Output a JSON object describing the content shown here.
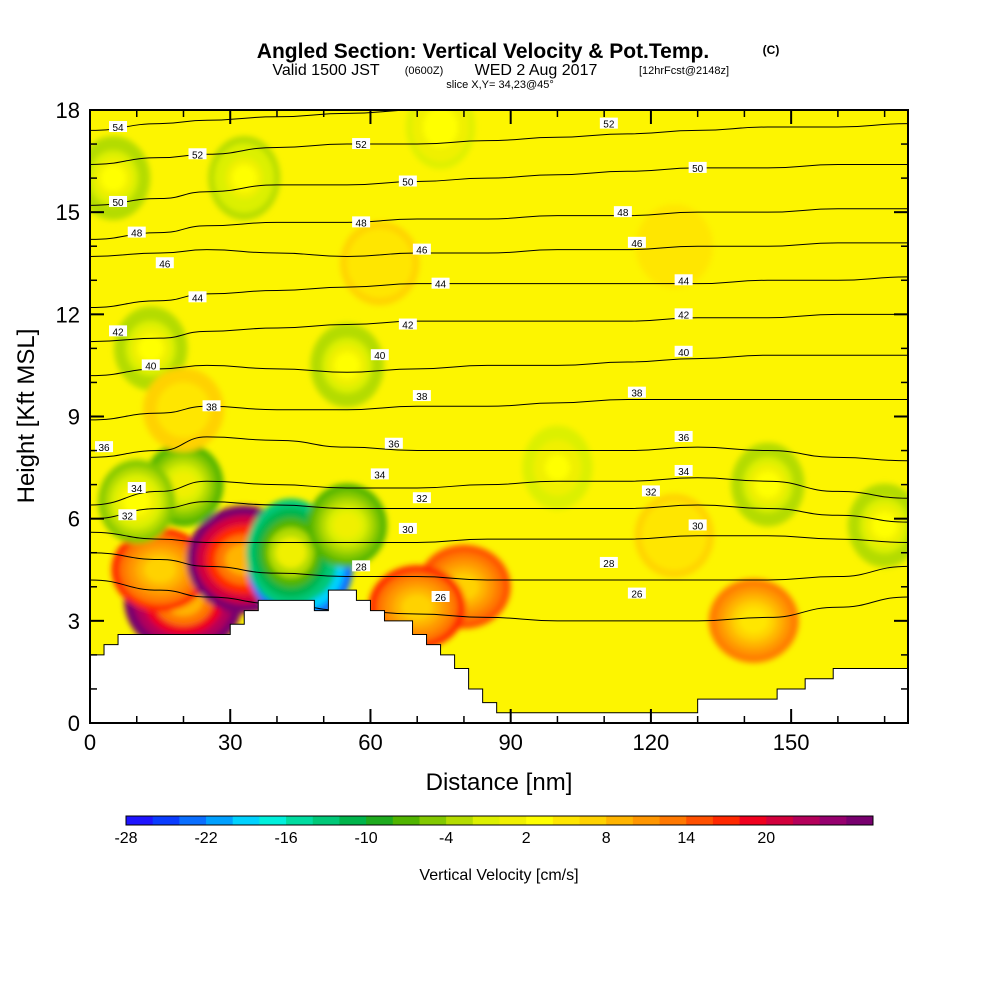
{
  "title": {
    "main": "Angled Section: Vertical Velocity & Pot.Temp.",
    "main_unit": "(C)",
    "line2_a": "Valid 1500 JST",
    "line2_b": "(0600Z)",
    "line2_c": "WED 2 Aug 2017",
    "line2_d": "[12hrFcst@2148z]",
    "line3": "slice X,Y= 34,23@45°"
  },
  "chart_data": {
    "type": "heatmap",
    "xlabel": "Distance [nm]",
    "ylabel": "Height [Kft MSL]",
    "xlim": [
      0,
      175
    ],
    "ylim": [
      0,
      18
    ],
    "x_ticks": [
      0,
      30,
      60,
      90,
      120,
      150
    ],
    "y_ticks": [
      0,
      3,
      6,
      9,
      12,
      15,
      18
    ],
    "terrain": [
      [
        0,
        2
      ],
      [
        3,
        2
      ],
      [
        3,
        2.3
      ],
      [
        6,
        2.3
      ],
      [
        6,
        2.6
      ],
      [
        9,
        2.6
      ],
      [
        9,
        2.6
      ],
      [
        30,
        2.6
      ],
      [
        30,
        2.9
      ],
      [
        33,
        2.9
      ],
      [
        33,
        3.3
      ],
      [
        36,
        3.3
      ],
      [
        36,
        3.6
      ],
      [
        48,
        3.6
      ],
      [
        48,
        3.3
      ],
      [
        51,
        3.3
      ],
      [
        51,
        3.9
      ],
      [
        57,
        3.9
      ],
      [
        57,
        3.6
      ],
      [
        60,
        3.6
      ],
      [
        60,
        3.3
      ],
      [
        63,
        3.3
      ],
      [
        63,
        3.0
      ],
      [
        69,
        3.0
      ],
      [
        69,
        2.6
      ],
      [
        72,
        2.6
      ],
      [
        72,
        2.3
      ],
      [
        75,
        2.3
      ],
      [
        75,
        2.0
      ],
      [
        78,
        2.0
      ],
      [
        78,
        1.6
      ],
      [
        81,
        1.6
      ],
      [
        81,
        1.0
      ],
      [
        84,
        1.0
      ],
      [
        84,
        0.6
      ],
      [
        87,
        0.6
      ],
      [
        87,
        0.3
      ],
      [
        130,
        0.3
      ],
      [
        130,
        0.7
      ],
      [
        147,
        0.7
      ],
      [
        147,
        1.0
      ],
      [
        153,
        1.0
      ],
      [
        153,
        1.3
      ],
      [
        159,
        1.3
      ],
      [
        159,
        1.6
      ],
      [
        175,
        1.6
      ]
    ],
    "velocity_blobs": [
      {
        "x": 20,
        "y": 3.6,
        "value": 26
      },
      {
        "x": 15,
        "y": 4.5,
        "value": 14
      },
      {
        "x": 33,
        "y": 4.8,
        "value": 24
      },
      {
        "x": 45,
        "y": 4.6,
        "value": -26
      },
      {
        "x": 43,
        "y": 5.0,
        "value": -16
      },
      {
        "x": 55,
        "y": 5.8,
        "value": -10
      },
      {
        "x": 20,
        "y": 7.0,
        "value": -10
      },
      {
        "x": 10,
        "y": 6.5,
        "value": -8
      },
      {
        "x": 5,
        "y": 16,
        "value": -6
      },
      {
        "x": 33,
        "y": 16,
        "value": -5
      },
      {
        "x": 55,
        "y": 10.5,
        "value": -6
      },
      {
        "x": 13,
        "y": 11,
        "value": -6
      },
      {
        "x": 80,
        "y": 4,
        "value": 12
      },
      {
        "x": 70,
        "y": 3.4,
        "value": 14
      },
      {
        "x": 142,
        "y": 3.0,
        "value": 10
      },
      {
        "x": 145,
        "y": 7.0,
        "value": -6
      },
      {
        "x": 170,
        "y": 5.8,
        "value": -6
      },
      {
        "x": 100,
        "y": 7.5,
        "value": -4
      },
      {
        "x": 62,
        "y": 13.5,
        "value": 4
      },
      {
        "x": 125,
        "y": 14,
        "value": 3
      },
      {
        "x": 125,
        "y": 5.5,
        "value": 4
      },
      {
        "x": 20,
        "y": 9.2,
        "value": 5
      },
      {
        "x": 75,
        "y": 17.5,
        "value": -3
      }
    ],
    "isentropes": [
      {
        "value": 26,
        "y": [
          4.2,
          3.9,
          3.7,
          3.5,
          3.3,
          3.2,
          3.1,
          3.0,
          3.0,
          3.0,
          3.1,
          3.4,
          3.7
        ]
      },
      {
        "value": 28,
        "y": [
          5.0,
          4.8,
          4.6,
          4.4,
          4.3,
          4.3,
          4.2,
          4.2,
          4.2,
          4.2,
          4.2,
          4.3,
          4.6
        ]
      },
      {
        "value": 30,
        "y": [
          5.6,
          5.4,
          5.3,
          5.3,
          5.3,
          5.3,
          5.4,
          5.4,
          5.4,
          5.5,
          5.5,
          5.4,
          5.3
        ]
      },
      {
        "value": 32,
        "y": [
          6.0,
          6.3,
          6.5,
          6.4,
          6.3,
          6.3,
          6.3,
          6.3,
          6.3,
          6.4,
          6.3,
          6.1,
          5.9
        ]
      },
      {
        "value": 34,
        "y": [
          6.4,
          6.8,
          7.1,
          7.0,
          6.9,
          6.9,
          7.0,
          7.1,
          7.1,
          7.2,
          7.1,
          6.8,
          6.6
        ]
      },
      {
        "value": 36,
        "y": [
          7.8,
          8.0,
          8.4,
          8.3,
          8.1,
          8.0,
          8.0,
          8.0,
          8.0,
          8.1,
          8.0,
          7.8,
          7.7
        ]
      },
      {
        "value": 38,
        "y": [
          8.9,
          9.1,
          9.3,
          9.2,
          9.2,
          9.3,
          9.3,
          9.4,
          9.5,
          9.5,
          9.5,
          9.5,
          9.5
        ]
      },
      {
        "value": 40,
        "y": [
          10.2,
          10.4,
          10.5,
          10.4,
          10.3,
          10.4,
          10.5,
          10.5,
          10.6,
          10.7,
          10.8,
          10.8,
          10.8
        ]
      },
      {
        "value": 42,
        "y": [
          11.2,
          11.3,
          11.5,
          11.6,
          11.7,
          11.8,
          11.8,
          11.8,
          11.8,
          11.9,
          11.9,
          12.0,
          12.0
        ]
      },
      {
        "value": 44,
        "y": [
          12.2,
          12.4,
          12.6,
          12.7,
          12.8,
          12.9,
          12.9,
          12.9,
          12.9,
          12.9,
          13.0,
          13.0,
          13.1
        ]
      },
      {
        "value": 46,
        "y": [
          13.7,
          13.8,
          13.9,
          13.8,
          13.7,
          13.8,
          13.8,
          13.9,
          13.9,
          14.0,
          14.0,
          14.1,
          14.1
        ]
      },
      {
        "value": 48,
        "y": [
          14.2,
          14.4,
          14.6,
          14.7,
          14.7,
          14.8,
          14.8,
          14.9,
          14.9,
          15.0,
          15.0,
          15.1,
          15.1
        ]
      },
      {
        "value": 50,
        "y": [
          15.2,
          15.4,
          15.6,
          15.8,
          15.8,
          15.9,
          16.0,
          16.1,
          16.2,
          16.3,
          16.3,
          16.4,
          16.4
        ]
      },
      {
        "value": 52,
        "y": [
          16.4,
          16.6,
          16.7,
          16.9,
          17.0,
          17.0,
          17.1,
          17.2,
          17.3,
          17.4,
          17.5,
          17.5,
          17.6
        ]
      },
      {
        "value": 54,
        "y": [
          17.4,
          17.6,
          17.7,
          17.8,
          17.9,
          18.0,
          18.0,
          18.0,
          18.0,
          18.0,
          18.0,
          18.0,
          18.0
        ]
      }
    ],
    "isentrope_x": [
      0,
      15,
      25,
      40,
      55,
      70,
      85,
      100,
      115,
      130,
      145,
      160,
      175
    ],
    "contour_labels": [
      {
        "text": "54",
        "x": 6,
        "y": 17.5
      },
      {
        "text": "52",
        "x": 23,
        "y": 16.7
      },
      {
        "text": "52",
        "x": 58,
        "y": 17.0
      },
      {
        "text": "52",
        "x": 111,
        "y": 17.6
      },
      {
        "text": "50",
        "x": 6,
        "y": 15.3
      },
      {
        "text": "50",
        "x": 68,
        "y": 15.9
      },
      {
        "text": "50",
        "x": 130,
        "y": 16.3
      },
      {
        "text": "48",
        "x": 10,
        "y": 14.4
      },
      {
        "text": "48",
        "x": 58,
        "y": 14.7
      },
      {
        "text": "48",
        "x": 114,
        "y": 15.0
      },
      {
        "text": "46",
        "x": 16,
        "y": 13.5
      },
      {
        "text": "46",
        "x": 71,
        "y": 13.9
      },
      {
        "text": "46",
        "x": 117,
        "y": 14.1
      },
      {
        "text": "44",
        "x": 23,
        "y": 12.5
      },
      {
        "text": "44",
        "x": 75,
        "y": 12.9
      },
      {
        "text": "44",
        "x": 127,
        "y": 13.0
      },
      {
        "text": "42",
        "x": 6,
        "y": 11.5
      },
      {
        "text": "42",
        "x": 68,
        "y": 11.7
      },
      {
        "text": "42",
        "x": 127,
        "y": 12.0
      },
      {
        "text": "40",
        "x": 13,
        "y": 10.5
      },
      {
        "text": "40",
        "x": 62,
        "y": 10.8
      },
      {
        "text": "40",
        "x": 127,
        "y": 10.9
      },
      {
        "text": "38",
        "x": 26,
        "y": 9.3
      },
      {
        "text": "38",
        "x": 71,
        "y": 9.6
      },
      {
        "text": "38",
        "x": 117,
        "y": 9.7
      },
      {
        "text": "36",
        "x": 3,
        "y": 8.1
      },
      {
        "text": "36",
        "x": 65,
        "y": 8.2
      },
      {
        "text": "36",
        "x": 127,
        "y": 8.4
      },
      {
        "text": "34",
        "x": 10,
        "y": 6.9
      },
      {
        "text": "34",
        "x": 62,
        "y": 7.3
      },
      {
        "text": "34",
        "x": 127,
        "y": 7.4
      },
      {
        "text": "32",
        "x": 8,
        "y": 6.1
      },
      {
        "text": "32",
        "x": 71,
        "y": 6.6
      },
      {
        "text": "32",
        "x": 120,
        "y": 6.8
      },
      {
        "text": "30",
        "x": 68,
        "y": 5.7
      },
      {
        "text": "30",
        "x": 130,
        "y": 5.8
      },
      {
        "text": "28",
        "x": 58,
        "y": 4.6
      },
      {
        "text": "28",
        "x": 111,
        "y": 4.7
      },
      {
        "text": "26",
        "x": 75,
        "y": 3.7
      },
      {
        "text": "26",
        "x": 117,
        "y": 3.8
      }
    ],
    "colorbar": {
      "label": "Vertical Velocity [cm/s]",
      "tick_labels": [
        "-28",
        "-22",
        "-16",
        "-10",
        "-4",
        "2",
        "8",
        "14",
        "20"
      ],
      "min": -30,
      "max": 26,
      "colors": [
        "#1e14ff",
        "#0a3cff",
        "#0a6eff",
        "#00a0ff",
        "#00d2ff",
        "#00f0dc",
        "#00dca0",
        "#00c878",
        "#00b44b",
        "#1eaa1e",
        "#50b400",
        "#82c800",
        "#b4dc00",
        "#dcf000",
        "#f0f000",
        "#ffff00",
        "#ffe600",
        "#ffd200",
        "#ffb400",
        "#ff9600",
        "#ff7800",
        "#ff5000",
        "#ff2800",
        "#f0001e",
        "#d2003c",
        "#b4005a",
        "#96006e",
        "#78006e"
      ]
    }
  }
}
